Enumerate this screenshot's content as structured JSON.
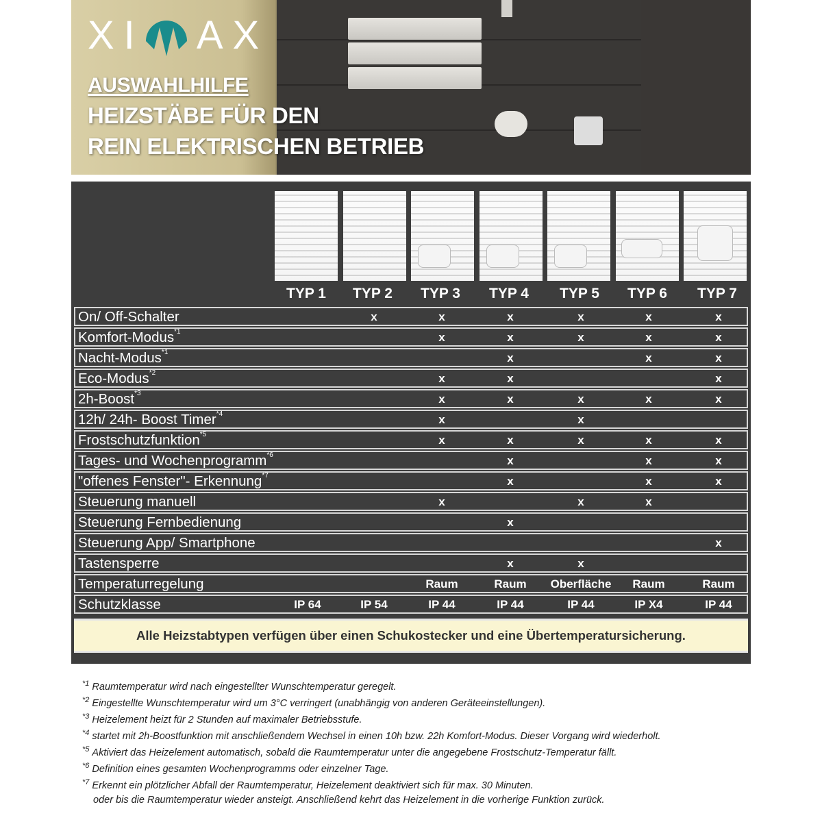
{
  "brand": {
    "logo_text": "XIMAX",
    "accent": "#1a8c8c"
  },
  "hero": {
    "kicker": "AUSWAHLHILFE",
    "title_line1": "HEIZSTÄBE FÜR DEN",
    "title_line2": "REIN ELEKTRISCHEN BETRIEB"
  },
  "table": {
    "columns": [
      "TYP 1",
      "TYP 2",
      "TYP 3",
      "TYP 4",
      "TYP 5",
      "TYP 6",
      "TYP 7"
    ],
    "rows": [
      {
        "label": "On/ Off-Schalter",
        "ref": "",
        "cells": [
          "",
          "x",
          "x",
          "x",
          "x",
          "x",
          "x"
        ]
      },
      {
        "label": "Komfort-Modus",
        "ref": "*1",
        "cells": [
          "",
          "",
          "x",
          "x",
          "x",
          "x",
          "x"
        ]
      },
      {
        "label": "Nacht-Modus",
        "ref": "*1",
        "cells": [
          "",
          "",
          "",
          "x",
          "",
          "x",
          "x"
        ]
      },
      {
        "label": "Eco-Modus",
        "ref": "*2",
        "cells": [
          "",
          "",
          "x",
          "x",
          "",
          "",
          "x"
        ]
      },
      {
        "label": "2h-Boost",
        "ref": "*3",
        "cells": [
          "",
          "",
          "x",
          "x",
          "x",
          "x",
          "x"
        ]
      },
      {
        "label": "12h/ 24h- Boost Timer",
        "ref": "*4",
        "cells": [
          "",
          "",
          "x",
          "",
          "x",
          "",
          ""
        ]
      },
      {
        "label": "Frostschutzfunktion",
        "ref": "*5",
        "cells": [
          "",
          "",
          "x",
          "x",
          "x",
          "x",
          "x"
        ]
      },
      {
        "label": "Tages- und Wochenprogramm",
        "ref": "*6",
        "cells": [
          "",
          "",
          "",
          "x",
          "",
          "x",
          "x"
        ]
      },
      {
        "label": "\"offenes Fenster\"- Erkennung",
        "ref": "*7",
        "cells": [
          "",
          "",
          "",
          "x",
          "",
          "x",
          "x"
        ]
      },
      {
        "label": "Steuerung manuell",
        "ref": "",
        "cells": [
          "",
          "",
          "x",
          "",
          "x",
          "x",
          ""
        ]
      },
      {
        "label": "Steuerung Fernbedienung",
        "ref": "",
        "cells": [
          "",
          "",
          "",
          "x",
          "",
          "",
          ""
        ]
      },
      {
        "label": "Steuerung App/ Smartphone",
        "ref": "",
        "cells": [
          "",
          "",
          "",
          "",
          "",
          "",
          "x"
        ]
      },
      {
        "label": "Tastensperre",
        "ref": "",
        "cells": [
          "",
          "",
          "",
          "x",
          "x",
          "",
          ""
        ]
      },
      {
        "label": "Temperaturregelung",
        "ref": "",
        "cells": [
          "",
          "",
          "Raum",
          "Raum",
          "Oberfläche",
          "Raum",
          "Raum"
        ]
      },
      {
        "label": "Schutzklasse",
        "ref": "",
        "cells": [
          "IP 64",
          "IP 54",
          "IP 44",
          "IP 44",
          "IP 44",
          "IP X4",
          "IP 44"
        ]
      }
    ],
    "note": "Alle Heizstabtypen verfügen über einen Schukostecker und eine Übertemperatursicherung."
  },
  "footnotes": [
    {
      "mark": "*1",
      "text": "Raumtemperatur wird nach eingestellter Wunschtemperatur geregelt."
    },
    {
      "mark": "*2",
      "text": "Eingestellte Wunschtemperatur wird um 3°C verringert (unabhängig von anderen Geräteeinstellungen)."
    },
    {
      "mark": "*3",
      "text": "Heizelement heizt für 2 Stunden auf maximaler Betriebsstufe."
    },
    {
      "mark": "*4",
      "text": "startet mit 2h-Boostfunktion mit anschließendem Wechsel in einen 10h bzw. 22h Komfort-Modus. Dieser Vorgang wird wiederholt."
    },
    {
      "mark": "*5",
      "text": "Aktiviert das Heizelement automatisch, sobald die Raumtemperatur unter die angegebene Frostschutz-Temperatur fällt."
    },
    {
      "mark": "*6",
      "text": "Definition eines gesamten Wochenprogramms oder einzelner Tage."
    },
    {
      "mark": "*7",
      "text": "Erkennt ein plötzlicher Abfall der Raumtemperatur, Heizelement deaktiviert sich für max. 30 Minuten."
    },
    {
      "mark": "",
      "text": "oder bis die Raumtemperatur wieder ansteigt. Anschließend kehrt das Heizelement in die vorherige Funktion zurück."
    }
  ]
}
